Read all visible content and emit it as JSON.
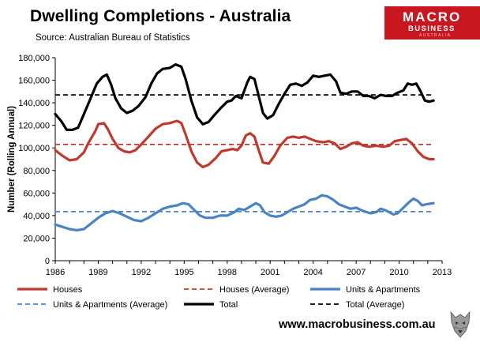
{
  "header": {
    "title": "Dwelling Completions - Australia",
    "source": "Source: Australian Bureau of Statistics"
  },
  "logo": {
    "line1": "MACRO",
    "line2": "BUSINESS",
    "line3": "AUSTRALIA",
    "color": "#c8171e"
  },
  "footer": {
    "website": "www.macrobusiness.com.au",
    "badge_icon": "wolf-head-icon"
  },
  "chart_data": {
    "type": "line",
    "title": "Dwelling Completions - Australia",
    "xlabel": "",
    "ylabel": "Number (Rolling Annual)",
    "xlim": [
      1986,
      2013
    ],
    "ylim": [
      0,
      180000
    ],
    "x_ticks": [
      1986,
      1989,
      1992,
      1995,
      1998,
      2001,
      2004,
      2007,
      2010,
      2013
    ],
    "x_tick_labels": [
      "1986",
      "1989",
      "1992",
      "1995",
      "1998",
      "2001",
      "2004",
      "2007",
      "2010",
      "2013"
    ],
    "y_ticks": [
      0,
      20000,
      40000,
      60000,
      80000,
      100000,
      120000,
      140000,
      160000,
      180000
    ],
    "y_tick_labels": [
      "0",
      "20,000",
      "40,000",
      "60,000",
      "80,000",
      "100,000",
      "120,000",
      "140,000",
      "160,000",
      "180,000"
    ],
    "grid": false,
    "legend_placement": "bottom",
    "series": [
      {
        "name": "Houses",
        "color": "#c0392f",
        "style": "solid",
        "points": [
          [
            1986,
            98000
          ],
          [
            1986.5,
            93000
          ],
          [
            1987,
            89000
          ],
          [
            1987.5,
            90000
          ],
          [
            1988,
            96000
          ],
          [
            1988.3,
            104000
          ],
          [
            1988.8,
            115000
          ],
          [
            1989,
            121000
          ],
          [
            1989.4,
            122000
          ],
          [
            1989.7,
            116000
          ],
          [
            1990,
            108000
          ],
          [
            1990.4,
            100000
          ],
          [
            1990.8,
            97000
          ],
          [
            1991.2,
            96000
          ],
          [
            1991.6,
            98000
          ],
          [
            1992,
            103000
          ],
          [
            1992.5,
            110000
          ],
          [
            1993,
            117000
          ],
          [
            1993.5,
            121000
          ],
          [
            1994,
            122000
          ],
          [
            1994.5,
            124000
          ],
          [
            1994.8,
            122000
          ],
          [
            1995.1,
            112000
          ],
          [
            1995.5,
            97000
          ],
          [
            1995.9,
            87000
          ],
          [
            1996.3,
            83000
          ],
          [
            1996.7,
            85000
          ],
          [
            1997.2,
            91000
          ],
          [
            1997.6,
            97000
          ],
          [
            1998,
            98000
          ],
          [
            1998.4,
            99000
          ],
          [
            1998.7,
            98000
          ],
          [
            1999,
            102000
          ],
          [
            1999.3,
            111000
          ],
          [
            1999.6,
            113000
          ],
          [
            1999.9,
            110000
          ],
          [
            2000.2,
            98000
          ],
          [
            2000.5,
            87000
          ],
          [
            2000.9,
            86000
          ],
          [
            2001.3,
            93000
          ],
          [
            2001.7,
            102000
          ],
          [
            2002.2,
            109000
          ],
          [
            2002.6,
            110000
          ],
          [
            2003,
            109000
          ],
          [
            2003.4,
            110000
          ],
          [
            2003.8,
            108000
          ],
          [
            2004.2,
            106000
          ],
          [
            2004.7,
            105000
          ],
          [
            2005.1,
            106000
          ],
          [
            2005.5,
            104000
          ],
          [
            2005.9,
            99000
          ],
          [
            2006.3,
            101000
          ],
          [
            2006.7,
            104000
          ],
          [
            2007.1,
            105000
          ],
          [
            2007.5,
            102000
          ],
          [
            2007.9,
            101000
          ],
          [
            2008.4,
            102000
          ],
          [
            2008.9,
            101000
          ],
          [
            2009.3,
            102000
          ],
          [
            2009.7,
            106000
          ],
          [
            2010.1,
            107000
          ],
          [
            2010.5,
            108000
          ],
          [
            2010.9,
            104000
          ],
          [
            2011.3,
            97000
          ],
          [
            2011.7,
            92000
          ],
          [
            2012.1,
            90000
          ],
          [
            2012.4,
            90000
          ]
        ]
      },
      {
        "name": "Houses (Average)",
        "color": "#c0392f",
        "style": "dashed",
        "points": [
          [
            1986,
            103000
          ],
          [
            2012.4,
            103000
          ]
        ]
      },
      {
        "name": "Units & Apartments",
        "color": "#4a83c2",
        "style": "solid",
        "points": [
          [
            1986,
            32000
          ],
          [
            1986.5,
            30000
          ],
          [
            1987,
            28000
          ],
          [
            1987.5,
            27000
          ],
          [
            1988,
            28000
          ],
          [
            1988.5,
            33000
          ],
          [
            1989,
            38000
          ],
          [
            1989.5,
            42000
          ],
          [
            1990,
            44000
          ],
          [
            1990.5,
            42000
          ],
          [
            1991,
            39000
          ],
          [
            1991.5,
            36000
          ],
          [
            1992,
            35000
          ],
          [
            1992.5,
            38000
          ],
          [
            1993,
            42000
          ],
          [
            1993.5,
            46000
          ],
          [
            1994,
            48000
          ],
          [
            1994.5,
            49000
          ],
          [
            1994.9,
            51000
          ],
          [
            1995.3,
            50000
          ],
          [
            1995.7,
            45000
          ],
          [
            1996.1,
            40000
          ],
          [
            1996.5,
            38000
          ],
          [
            1997,
            38000
          ],
          [
            1997.5,
            40000
          ],
          [
            1998,
            40000
          ],
          [
            1998.5,
            43000
          ],
          [
            1998.8,
            46000
          ],
          [
            1999.2,
            45000
          ],
          [
            1999.6,
            48000
          ],
          [
            2000,
            51000
          ],
          [
            2000.3,
            49000
          ],
          [
            2000.6,
            43000
          ],
          [
            2001,
            40000
          ],
          [
            2001.4,
            39000
          ],
          [
            2001.8,
            40000
          ],
          [
            2002.2,
            43000
          ],
          [
            2002.6,
            46000
          ],
          [
            2003,
            48000
          ],
          [
            2003.4,
            50000
          ],
          [
            2003.8,
            54000
          ],
          [
            2004.2,
            55000
          ],
          [
            2004.6,
            58000
          ],
          [
            2005,
            57000
          ],
          [
            2005.4,
            54000
          ],
          [
            2005.8,
            50000
          ],
          [
            2006.2,
            48000
          ],
          [
            2006.6,
            46000
          ],
          [
            2007,
            47000
          ],
          [
            2007.5,
            44000
          ],
          [
            2008,
            42000
          ],
          [
            2008.4,
            43000
          ],
          [
            2008.7,
            46000
          ],
          [
            2009,
            45000
          ],
          [
            2009.3,
            43000
          ],
          [
            2009.6,
            41000
          ],
          [
            2009.9,
            42000
          ],
          [
            2010.3,
            47000
          ],
          [
            2010.7,
            52000
          ],
          [
            2011,
            55000
          ],
          [
            2011.3,
            53000
          ],
          [
            2011.6,
            49000
          ],
          [
            2011.9,
            50000
          ],
          [
            2012.4,
            51000
          ]
        ]
      },
      {
        "name": "Units & Apartments (Average)",
        "color": "#4a83c2",
        "style": "dashed",
        "points": [
          [
            1986,
            43500
          ],
          [
            2012.4,
            43500
          ]
        ]
      },
      {
        "name": "Total",
        "color": "#000000",
        "style": "solid",
        "points": [
          [
            1986,
            130000
          ],
          [
            1986.4,
            124000
          ],
          [
            1986.8,
            116000
          ],
          [
            1987.2,
            116000
          ],
          [
            1987.6,
            118000
          ],
          [
            1988,
            130000
          ],
          [
            1988.4,
            142000
          ],
          [
            1988.9,
            157000
          ],
          [
            1989.3,
            163000
          ],
          [
            1989.6,
            165000
          ],
          [
            1989.9,
            156000
          ],
          [
            1990.2,
            144000
          ],
          [
            1990.6,
            135000
          ],
          [
            1991,
            131000
          ],
          [
            1991.4,
            133000
          ],
          [
            1991.8,
            137000
          ],
          [
            1992.3,
            145000
          ],
          [
            1992.7,
            157000
          ],
          [
            1993.1,
            166000
          ],
          [
            1993.5,
            170000
          ],
          [
            1994,
            171000
          ],
          [
            1994.4,
            174000
          ],
          [
            1994.8,
            172000
          ],
          [
            1995.1,
            161000
          ],
          [
            1995.5,
            142000
          ],
          [
            1995.9,
            127000
          ],
          [
            1996.3,
            121000
          ],
          [
            1996.7,
            123000
          ],
          [
            1997.1,
            129000
          ],
          [
            1997.6,
            136000
          ],
          [
            1998,
            141000
          ],
          [
            1998.3,
            142000
          ],
          [
            1998.6,
            146000
          ],
          [
            1999,
            144000
          ],
          [
            1999.4,
            158000
          ],
          [
            1999.6,
            163000
          ],
          [
            1999.9,
            161000
          ],
          [
            2000.2,
            146000
          ],
          [
            2000.5,
            131000
          ],
          [
            2000.8,
            126000
          ],
          [
            2001.2,
            129000
          ],
          [
            2001.6,
            139000
          ],
          [
            2002,
            148000
          ],
          [
            2002.4,
            156000
          ],
          [
            2002.8,
            157000
          ],
          [
            2003.2,
            155000
          ],
          [
            2003.6,
            158000
          ],
          [
            2004,
            164000
          ],
          [
            2004.4,
            163000
          ],
          [
            2004.8,
            164000
          ],
          [
            2005.2,
            165000
          ],
          [
            2005.6,
            159000
          ],
          [
            2005.9,
            149000
          ],
          [
            2006.3,
            148000
          ],
          [
            2006.7,
            150000
          ],
          [
            2007.1,
            150000
          ],
          [
            2007.5,
            146000
          ],
          [
            2007.9,
            146000
          ],
          [
            2008.3,
            144000
          ],
          [
            2008.7,
            147000
          ],
          [
            2009.1,
            146000
          ],
          [
            2009.5,
            146000
          ],
          [
            2009.9,
            149000
          ],
          [
            2010.3,
            151000
          ],
          [
            2010.6,
            157000
          ],
          [
            2010.9,
            156000
          ],
          [
            2011.2,
            157000
          ],
          [
            2011.5,
            150000
          ],
          [
            2011.8,
            142000
          ],
          [
            2012.1,
            141000
          ],
          [
            2012.4,
            142000
          ]
        ]
      },
      {
        "name": "Total (Average)",
        "color": "#000000",
        "style": "dashed",
        "points": [
          [
            1986,
            147000
          ],
          [
            2012.4,
            147000
          ]
        ]
      }
    ]
  }
}
